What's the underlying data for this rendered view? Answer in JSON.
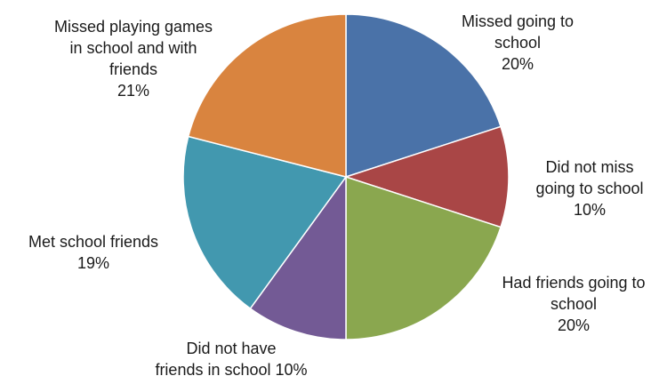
{
  "chart_data": {
    "type": "pie",
    "title": "",
    "slices": [
      {
        "label_lines": [
          "Missed going to",
          "school",
          "20%"
        ],
        "value": 20,
        "color": "#4a72a8"
      },
      {
        "label_lines": [
          "Did not miss",
          "going to school",
          "10%"
        ],
        "value": 10,
        "color": "#a94646"
      },
      {
        "label_lines": [
          "Had friends going to",
          "school",
          "20%"
        ],
        "value": 20,
        "color": "#8aa74f"
      },
      {
        "label_lines": [
          "Did not have",
          "friends in school 10%"
        ],
        "value": 10,
        "color": "#735a95"
      },
      {
        "label_lines": [
          "Met school friends",
          "19%"
        ],
        "value": 19,
        "color": "#4298af"
      },
      {
        "label_lines": [
          "Missed playing games",
          "in school and with",
          "friends",
          "21%"
        ],
        "value": 21,
        "color": "#d9843f"
      }
    ]
  }
}
